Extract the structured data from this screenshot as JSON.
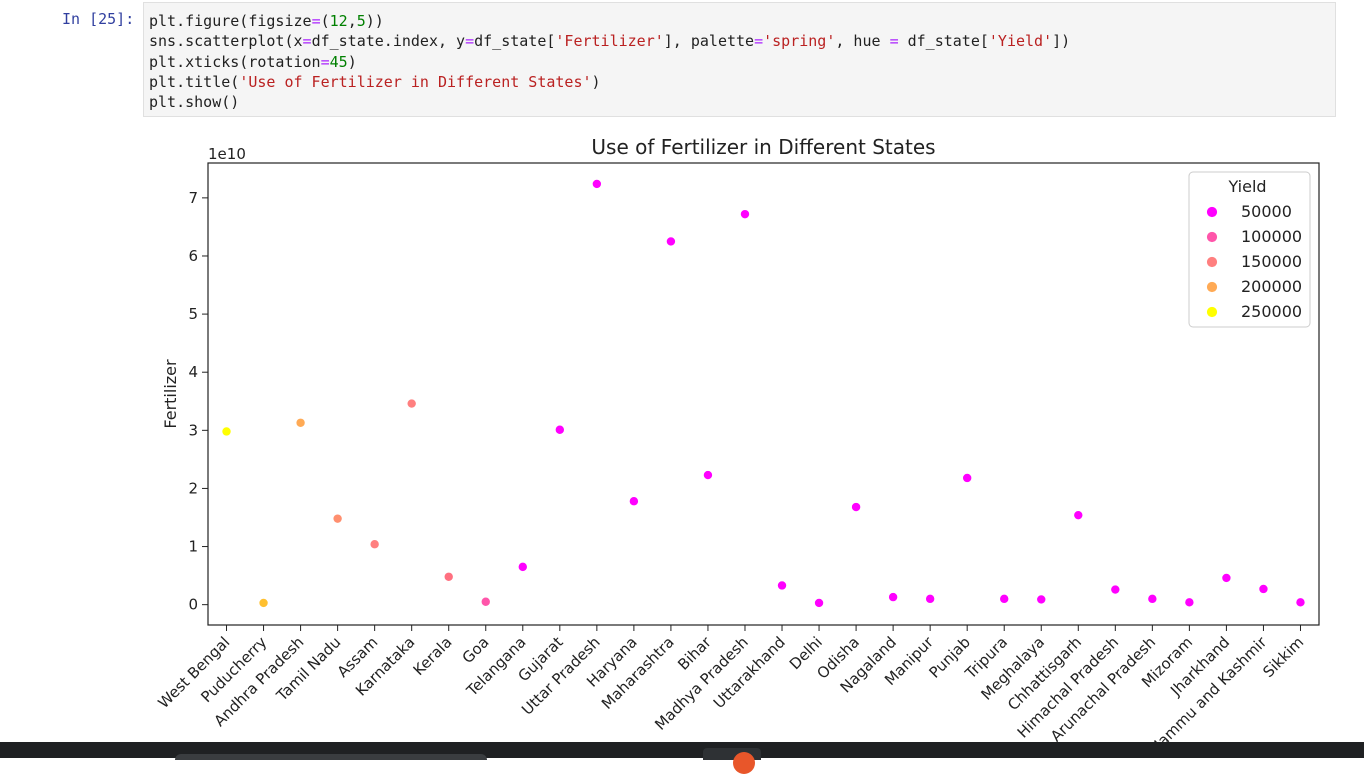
{
  "cell": {
    "prompt": "In [25]:",
    "code_lines": [
      [
        {
          "t": "plain",
          "v": "plt.figure(figsize"
        },
        {
          "t": "op",
          "v": "="
        },
        {
          "t": "plain",
          "v": "("
        },
        {
          "t": "num",
          "v": "12"
        },
        {
          "t": "plain",
          "v": ","
        },
        {
          "t": "num",
          "v": "5"
        },
        {
          "t": "plain",
          "v": "))"
        }
      ],
      [
        {
          "t": "plain",
          "v": "sns.scatterplot(x"
        },
        {
          "t": "op",
          "v": "="
        },
        {
          "t": "plain",
          "v": "df_state.index, y"
        },
        {
          "t": "op",
          "v": "="
        },
        {
          "t": "plain",
          "v": "df_state["
        },
        {
          "t": "str",
          "v": "'Fertilizer'"
        },
        {
          "t": "plain",
          "v": "], palette"
        },
        {
          "t": "op",
          "v": "="
        },
        {
          "t": "str",
          "v": "'spring'"
        },
        {
          "t": "plain",
          "v": ", hue "
        },
        {
          "t": "op",
          "v": "="
        },
        {
          "t": "plain",
          "v": " df_state["
        },
        {
          "t": "str",
          "v": "'Yield'"
        },
        {
          "t": "plain",
          "v": "])"
        }
      ],
      [
        {
          "t": "plain",
          "v": "plt.xticks(rotation"
        },
        {
          "t": "op",
          "v": "="
        },
        {
          "t": "num",
          "v": "45"
        },
        {
          "t": "plain",
          "v": ")"
        }
      ],
      [
        {
          "t": "plain",
          "v": "plt.title("
        },
        {
          "t": "str",
          "v": "'Use of Fertilizer in Different States'"
        },
        {
          "t": "plain",
          "v": ")"
        }
      ],
      [
        {
          "t": "plain",
          "v": "plt.show()"
        }
      ]
    ]
  },
  "chart_data": {
    "type": "scatter",
    "title": "Use of Fertilizer in Different States",
    "xlabel": "",
    "ylabel": "Fertilizer",
    "y_offset_text": "1e10",
    "ylim": [
      -0.35,
      7.6
    ],
    "yticks": [
      0,
      1,
      2,
      3,
      4,
      5,
      6,
      7
    ],
    "grid": false,
    "legend": {
      "title": "Yield",
      "placement": "top-right",
      "entries": [
        {
          "label": "50000",
          "color": "#ff00ff"
        },
        {
          "label": "100000",
          "color": "#ff55aa"
        },
        {
          "label": "150000",
          "color": "#ff7f7f"
        },
        {
          "label": "200000",
          "color": "#ffaa55"
        },
        {
          "label": "250000",
          "color": "#ffff00"
        }
      ]
    },
    "categories": [
      "West Bengal",
      "Puducherry",
      "Andhra Pradesh",
      "Tamil Nadu",
      "Assam",
      "Karnataka",
      "Kerala",
      "Goa",
      "Telangana",
      "Gujarat",
      "Uttar Pradesh",
      "Haryana",
      "Maharashtra",
      "Bihar",
      "Madhya Pradesh",
      "Uttarakhand",
      "Delhi",
      "Odisha",
      "Nagaland",
      "Manipur",
      "Punjab",
      "Tripura",
      "Meghalaya",
      "Chhattisgarh",
      "Himachal Pradesh",
      "Arunachal Pradesh",
      "Mizoram",
      "Jharkhand",
      "Jammu and Kashmir",
      "Sikkim"
    ],
    "points": [
      {
        "x": "West Bengal",
        "y": 2.98,
        "color": "#ffff00"
      },
      {
        "x": "Puducherry",
        "y": 0.03,
        "color": "#ffc030"
      },
      {
        "x": "Andhra Pradesh",
        "y": 3.13,
        "color": "#ffaa55"
      },
      {
        "x": "Tamil Nadu",
        "y": 1.48,
        "color": "#ff8f6f"
      },
      {
        "x": "Assam",
        "y": 1.04,
        "color": "#ff7f7f"
      },
      {
        "x": "Karnataka",
        "y": 3.46,
        "color": "#ff7f7f"
      },
      {
        "x": "Kerala",
        "y": 0.48,
        "color": "#ff7080"
      },
      {
        "x": "Goa",
        "y": 0.05,
        "color": "#ff55aa"
      },
      {
        "x": "Telangana",
        "y": 0.65,
        "color": "#ff00ff"
      },
      {
        "x": "Gujarat",
        "y": 3.01,
        "color": "#ff00ff"
      },
      {
        "x": "Uttar Pradesh",
        "y": 7.24,
        "color": "#ff00ff"
      },
      {
        "x": "Haryana",
        "y": 1.78,
        "color": "#ff00ff"
      },
      {
        "x": "Maharashtra",
        "y": 6.25,
        "color": "#ff00ff"
      },
      {
        "x": "Bihar",
        "y": 2.23,
        "color": "#ff00ff"
      },
      {
        "x": "Madhya Pradesh",
        "y": 6.72,
        "color": "#ff00ff"
      },
      {
        "x": "Uttarakhand",
        "y": 0.33,
        "color": "#ff00ff"
      },
      {
        "x": "Delhi",
        "y": 0.03,
        "color": "#ff00ff"
      },
      {
        "x": "Odisha",
        "y": 1.68,
        "color": "#ff00ff"
      },
      {
        "x": "Nagaland",
        "y": 0.13,
        "color": "#ff00ff"
      },
      {
        "x": "Manipur",
        "y": 0.1,
        "color": "#ff00ff"
      },
      {
        "x": "Punjab",
        "y": 2.18,
        "color": "#ff00ff"
      },
      {
        "x": "Tripura",
        "y": 0.1,
        "color": "#ff00ff"
      },
      {
        "x": "Meghalaya",
        "y": 0.09,
        "color": "#ff00ff"
      },
      {
        "x": "Chhattisgarh",
        "y": 1.54,
        "color": "#ff00ff"
      },
      {
        "x": "Himachal Pradesh",
        "y": 0.26,
        "color": "#ff00ff"
      },
      {
        "x": "Arunachal Pradesh",
        "y": 0.1,
        "color": "#ff00ff"
      },
      {
        "x": "Mizoram",
        "y": 0.04,
        "color": "#ff00ff"
      },
      {
        "x": "Jharkhand",
        "y": 0.46,
        "color": "#ff00ff"
      },
      {
        "x": "Jammu and Kashmir",
        "y": 0.27,
        "color": "#ff00ff"
      },
      {
        "x": "Sikkim",
        "y": 0.04,
        "color": "#ff00ff"
      }
    ]
  }
}
